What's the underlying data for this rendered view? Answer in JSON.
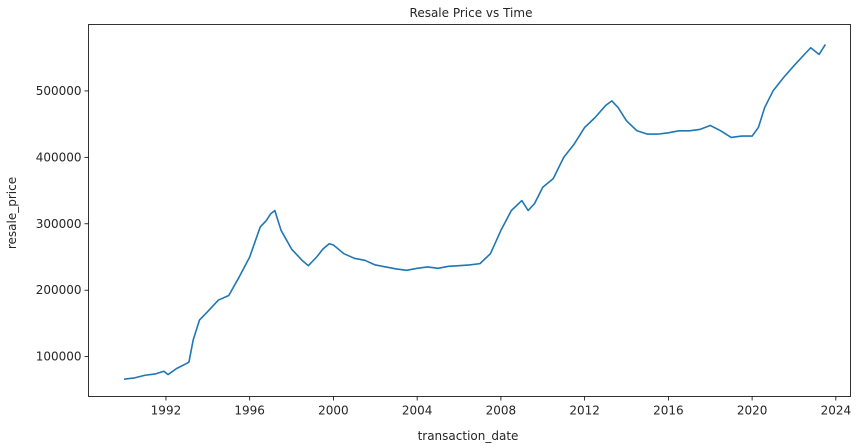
{
  "chart_data": {
    "type": "line",
    "title": "Resale Price vs Time",
    "xlabel": "transaction_date",
    "ylabel": "resale_price",
    "xlim": [
      1988.3,
      2024.7
    ],
    "ylim": [
      40000,
      600000
    ],
    "xticks": [
      1992,
      1996,
      2000,
      2004,
      2008,
      2012,
      2016,
      2020,
      2024
    ],
    "xtick_labels": [
      "1992",
      "1996",
      "2000",
      "2004",
      "2008",
      "2012",
      "2016",
      "2020",
      "2024"
    ],
    "yticks": [
      100000,
      200000,
      300000,
      400000,
      500000
    ],
    "ytick_labels": [
      "100000",
      "200000",
      "300000",
      "400000",
      "500000"
    ],
    "grid": false,
    "line_color": "#1f77b4",
    "series": [
      {
        "x": [
          1990.0,
          1990.5,
          1991.0,
          1991.5,
          1991.9,
          1992.1,
          1992.5,
          1993.0,
          1993.1,
          1993.3,
          1993.6,
          1994.0,
          1994.5,
          1995.0,
          1995.5,
          1996.0,
          1996.5,
          1996.8,
          1997.0,
          1997.2,
          1997.5,
          1998.0,
          1998.5,
          1998.8,
          1999.2,
          1999.5,
          1999.8,
          2000.0,
          2000.5,
          2001.0,
          2001.5,
          2002.0,
          2002.5,
          2003.0,
          2003.5,
          2004.0,
          2004.5,
          2005.0,
          2005.5,
          2006.0,
          2006.5,
          2007.0,
          2007.5,
          2008.0,
          2008.5,
          2009.0,
          2009.3,
          2009.6,
          2010.0,
          2010.5,
          2011.0,
          2011.5,
          2012.0,
          2012.5,
          2013.0,
          2013.3,
          2013.6,
          2014.0,
          2014.5,
          2015.0,
          2015.5,
          2016.0,
          2016.5,
          2017.0,
          2017.5,
          2018.0,
          2018.5,
          2019.0,
          2019.5,
          2020.0,
          2020.3,
          2020.6,
          2021.0,
          2021.5,
          2022.0,
          2022.5,
          2022.8,
          2023.0,
          2023.2,
          2023.5
        ],
        "y": [
          66000,
          68000,
          72000,
          74000,
          78000,
          73000,
          82000,
          90000,
          92000,
          125000,
          155000,
          168000,
          185000,
          192000,
          220000,
          250000,
          295000,
          305000,
          315000,
          320000,
          290000,
          262000,
          245000,
          237000,
          250000,
          262000,
          270000,
          268000,
          255000,
          248000,
          245000,
          238000,
          235000,
          232000,
          230000,
          233000,
          235000,
          233000,
          236000,
          237000,
          238000,
          240000,
          255000,
          290000,
          320000,
          335000,
          320000,
          330000,
          355000,
          368000,
          400000,
          420000,
          445000,
          460000,
          478000,
          485000,
          475000,
          455000,
          440000,
          435000,
          435000,
          437000,
          440000,
          440000,
          442000,
          448000,
          440000,
          430000,
          432000,
          432000,
          445000,
          475000,
          500000,
          520000,
          538000,
          555000,
          565000,
          560000,
          555000,
          570000
        ]
      }
    ]
  }
}
